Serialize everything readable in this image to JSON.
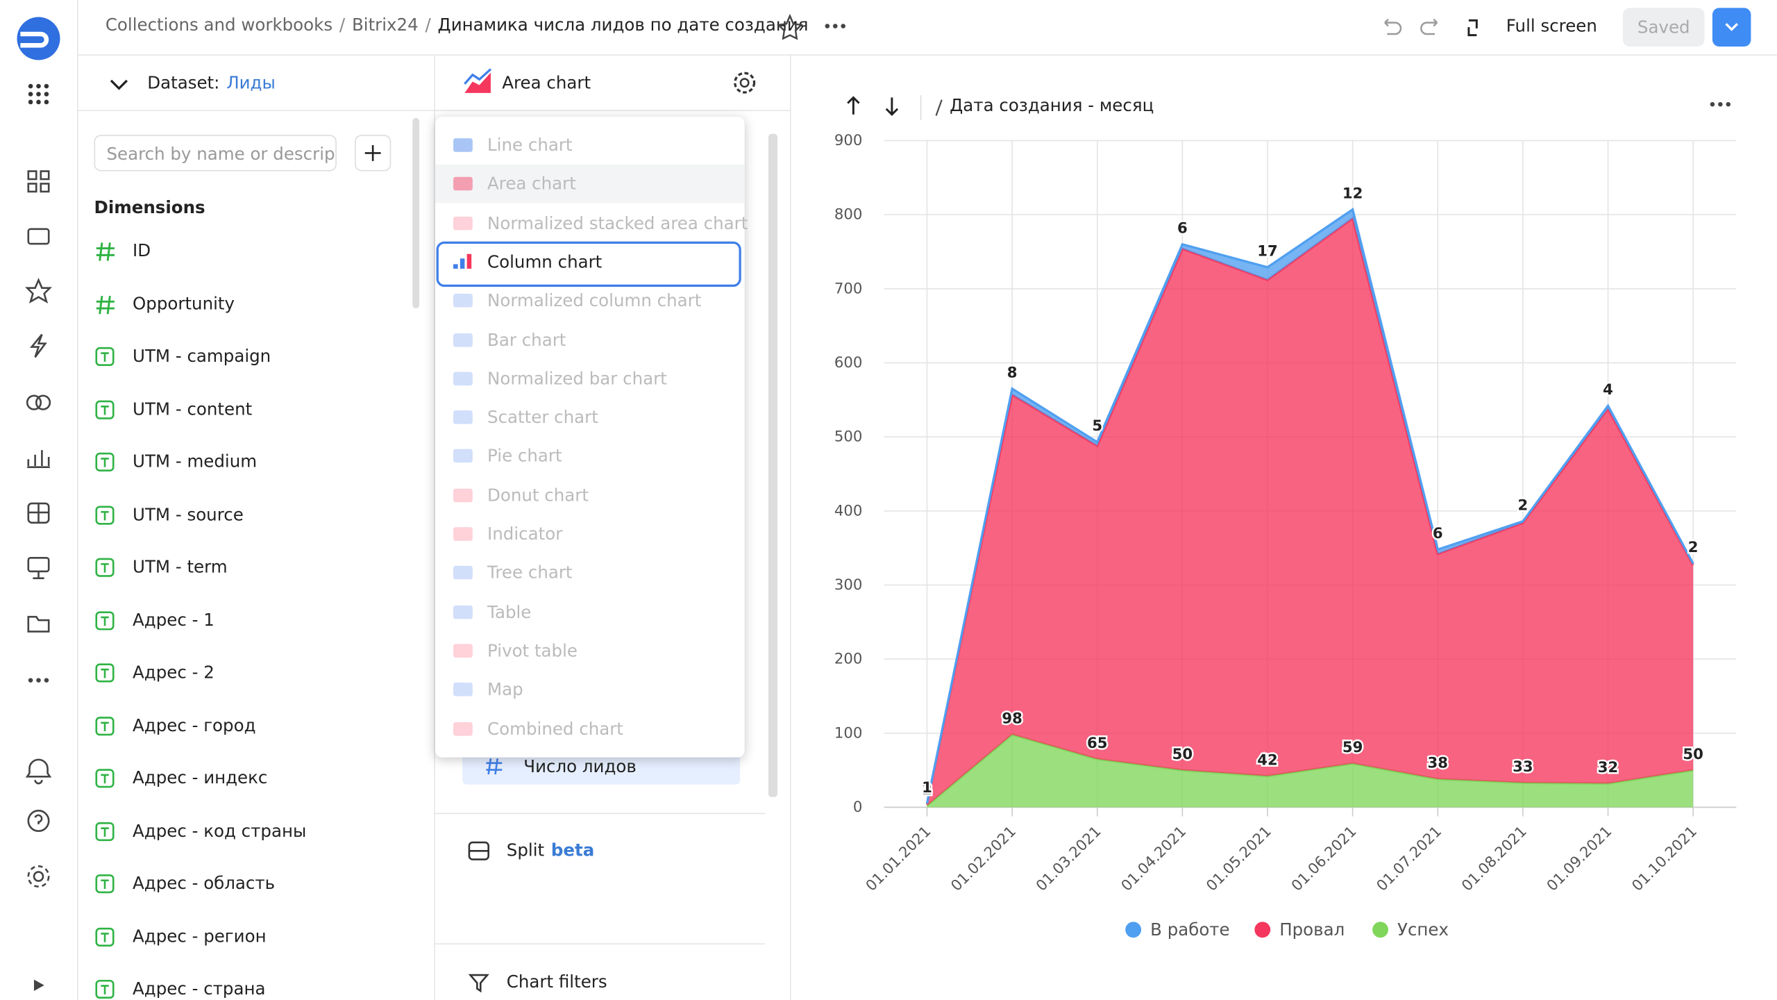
{
  "header": {
    "breadcrumbs": [
      "Collections and workbooks",
      "Bitrix24",
      "Динамика числа лидов по дате создания"
    ],
    "full_screen": "Full screen",
    "saved": "Saved"
  },
  "dataset_panel": {
    "label": "Dataset:",
    "name": "Лиды",
    "search_placeholder": "Search by name or descript",
    "dimensions_title": "Dimensions",
    "fields": [
      {
        "kind": "number",
        "name": "ID"
      },
      {
        "kind": "number",
        "name": "Opportunity"
      },
      {
        "kind": "text",
        "name": "UTM - campaign"
      },
      {
        "kind": "text",
        "name": "UTM - content"
      },
      {
        "kind": "text",
        "name": "UTM - medium"
      },
      {
        "kind": "text",
        "name": "UTM - source"
      },
      {
        "kind": "text",
        "name": "UTM - term"
      },
      {
        "kind": "text",
        "name": "Адрес - 1"
      },
      {
        "kind": "text",
        "name": "Адрес - 2"
      },
      {
        "kind": "text",
        "name": "Адрес - город"
      },
      {
        "kind": "text",
        "name": "Адрес - индекс"
      },
      {
        "kind": "text",
        "name": "Адрес - код страны"
      },
      {
        "kind": "text",
        "name": "Адрес - область"
      },
      {
        "kind": "text",
        "name": "Адрес - регион"
      },
      {
        "kind": "text",
        "name": "Адрес - страна"
      }
    ]
  },
  "chart_panel": {
    "chart_type": "Area chart",
    "menu": [
      "Line chart",
      "Area chart",
      "Normalized stacked area chart",
      "Column chart",
      "Normalized column chart",
      "Bar chart",
      "Normalized bar chart",
      "Scatter chart",
      "Pie chart",
      "Donut chart",
      "Indicator",
      "Tree chart",
      "Table",
      "Pivot table",
      "Map",
      "Combined chart"
    ],
    "current_index": 1,
    "selected_index": 3,
    "measure": "Число лидов",
    "split": "Split",
    "split_badge": "beta",
    "chart_filters": "Chart filters"
  },
  "chart_path": "Дата создания - месяц",
  "chart_data": {
    "type": "stacked-area",
    "categories": [
      "01.01.2021",
      "01.02.2021",
      "01.03.2021",
      "01.04.2021",
      "01.05.2021",
      "01.06.2021",
      "01.07.2021",
      "01.08.2021",
      "01.09.2021",
      "01.10.2021"
    ],
    "series": [
      {
        "name": "В работе",
        "color": "#4f9ff0",
        "show_labels": true,
        "values": [
          1,
          8,
          5,
          6,
          17,
          12,
          6,
          2,
          4,
          2
        ]
      },
      {
        "name": "Провал",
        "color": "#f5375e",
        "show_labels": false,
        "values": [
          2,
          459,
          423,
          704,
          670,
          736,
          304,
          351,
          506,
          277
        ]
      },
      {
        "name": "Успех",
        "color": "#7fd65a",
        "show_labels": true,
        "values": [
          2,
          98,
          65,
          50,
          42,
          59,
          38,
          33,
          32,
          50
        ]
      }
    ],
    "ylim": [
      0,
      900
    ],
    "yticks": [
      0,
      100,
      200,
      300,
      400,
      500,
      600,
      700,
      800,
      900
    ],
    "grid": true,
    "legend": "bottom"
  }
}
